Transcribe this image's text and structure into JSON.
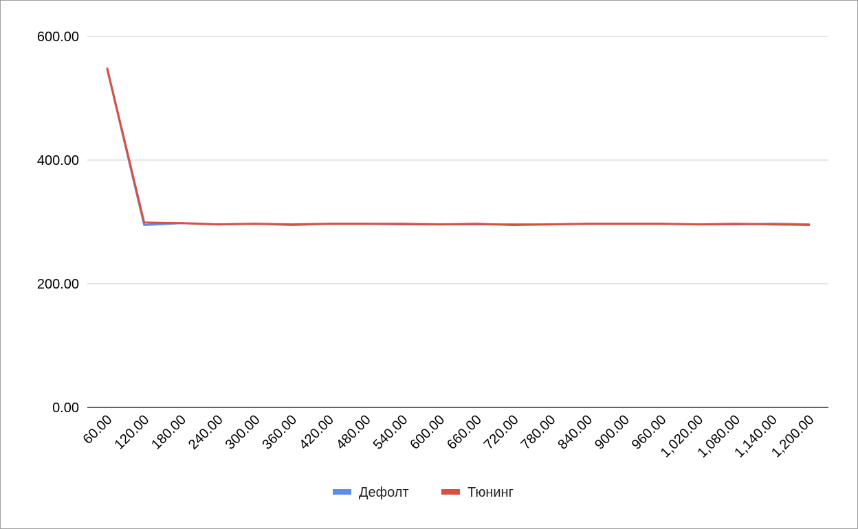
{
  "chart_data": {
    "type": "line",
    "title": "",
    "xlabel": "",
    "ylabel": "",
    "x": [
      60,
      120,
      180,
      240,
      300,
      360,
      420,
      480,
      540,
      600,
      660,
      720,
      780,
      840,
      900,
      960,
      1020,
      1080,
      1140,
      1200
    ],
    "x_tick_labels": [
      "60.00",
      "120.00",
      "180.00",
      "240.00",
      "300.00",
      "360.00",
      "420.00",
      "480.00",
      "540.00",
      "600.00",
      "660.00",
      "720.00",
      "780.00",
      "840.00",
      "900.00",
      "960.00",
      "1,020.00",
      "1,080.00",
      "1,140.00",
      "1,200.00"
    ],
    "ylim": [
      0,
      600
    ],
    "y_ticks": [
      0,
      200,
      400,
      600
    ],
    "y_tick_labels": [
      "0.00",
      "200.00",
      "400.00",
      "600.00"
    ],
    "grid": true,
    "legend_position": "bottom",
    "series": [
      {
        "name": "Дефолт",
        "color": "#5b8def",
        "values": [
          547,
          295,
          298,
          296,
          297,
          295,
          297,
          297,
          296,
          296,
          296,
          296,
          296,
          297,
          297,
          297,
          296,
          296,
          297,
          296
        ]
      },
      {
        "name": "Тюнинг",
        "color": "#dc4f3e",
        "values": [
          548,
          299,
          298,
          296,
          297,
          296,
          297,
          297,
          297,
          296,
          297,
          295,
          296,
          297,
          297,
          297,
          296,
          297,
          296,
          295
        ]
      }
    ]
  }
}
